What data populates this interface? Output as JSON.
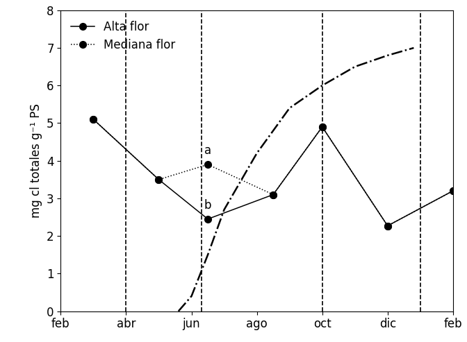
{
  "chart_data": {
    "type": "line",
    "y_label": "mg cl totales g⁻¹ PS",
    "xlim": [
      0,
      12
    ],
    "xticks": [
      {
        "value": 0,
        "label": "feb"
      },
      {
        "value": 2,
        "label": "abr"
      },
      {
        "value": 4,
        "label": "jun"
      },
      {
        "value": 6,
        "label": "ago"
      },
      {
        "value": 8,
        "label": "oct"
      },
      {
        "value": 10,
        "label": "dic"
      },
      {
        "value": 12,
        "label": "feb"
      }
    ],
    "ylim": [
      0,
      8
    ],
    "yticks": [
      0,
      1,
      2,
      3,
      4,
      5,
      6,
      7,
      8
    ],
    "legend": "upper left",
    "vlines": [
      2,
      4.3,
      8,
      11
    ],
    "series": [
      {
        "name": "Alta flor",
        "color": "#000000",
        "marker": "circle",
        "line_style": "solid",
        "x": [
          1.0,
          3.0,
          4.5,
          6.5,
          8.0,
          10.0,
          12.0
        ],
        "values": [
          5.1,
          3.5,
          2.45,
          3.1,
          4.9,
          2.27,
          3.2
        ]
      },
      {
        "name": "Mediana flor",
        "color": "#000000",
        "marker": "circle",
        "line_style": "dotted",
        "x": [
          1.0,
          3.0,
          4.5,
          6.5,
          8.0,
          10.0,
          12.0
        ],
        "values": [
          5.1,
          3.5,
          3.9,
          3.1,
          4.9,
          2.27,
          3.2
        ]
      },
      {
        "color": "#000000",
        "marker": "none",
        "line_style": "dashdot",
        "x": [
          3.6,
          4.0,
          4.5,
          5.0,
          6.0,
          7.0,
          8.0,
          9.0,
          10.0,
          10.8
        ],
        "values": [
          0.0,
          0.4,
          1.5,
          2.7,
          4.2,
          5.4,
          6.0,
          6.5,
          6.8,
          7.0
        ]
      }
    ],
    "annotations": [
      {
        "text": "a",
        "x": 4.5,
        "y": 3.9
      },
      {
        "text": "b",
        "x": 4.5,
        "y": 2.45
      }
    ]
  }
}
